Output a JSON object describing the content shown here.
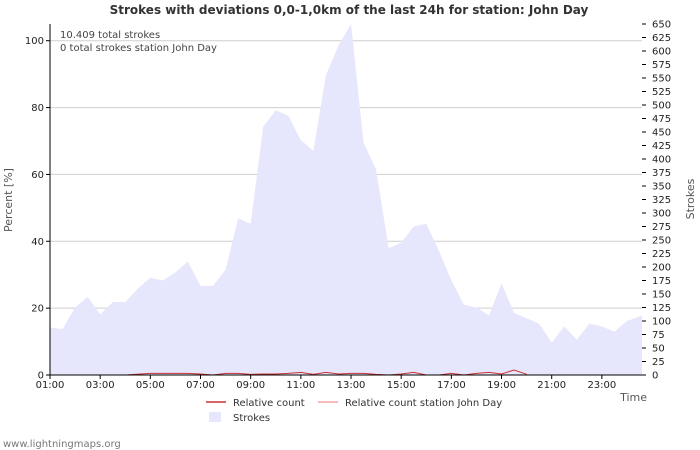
{
  "chart_data": {
    "type": "area",
    "title": "Strokes with deviations 0,0-1,0km of the last 24h for station: John Day",
    "xlabel": "Time",
    "ylabel_left": "Percent   [%]",
    "ylabel_right": "Strokes",
    "ylim_left": [
      0,
      105
    ],
    "ylim_right": [
      0,
      650
    ],
    "yticks_left": [
      0,
      20,
      40,
      60,
      80,
      100
    ],
    "yticks_right": [
      0,
      25,
      50,
      75,
      100,
      125,
      150,
      175,
      200,
      225,
      250,
      275,
      300,
      325,
      350,
      375,
      400,
      425,
      450,
      475,
      500,
      525,
      550,
      575,
      600,
      625,
      650
    ],
    "xlim": [
      1.0,
      24.6
    ],
    "xticks": [
      {
        "x": 1,
        "label": "01:00"
      },
      {
        "x": 3,
        "label": "03:00"
      },
      {
        "x": 5,
        "label": "05:00"
      },
      {
        "x": 7,
        "label": "07:00"
      },
      {
        "x": 9,
        "label": "09:00"
      },
      {
        "x": 11,
        "label": "11:00"
      },
      {
        "x": 13,
        "label": "13:00"
      },
      {
        "x": 15,
        "label": "15:00"
      },
      {
        "x": 17,
        "label": "17:00"
      },
      {
        "x": 19,
        "label": "19:00"
      },
      {
        "x": 21,
        "label": "21:00"
      },
      {
        "x": 23,
        "label": "23:00"
      }
    ],
    "annotations": [
      "10.409 total strokes",
      "0 total strokes station John Day"
    ],
    "series": [
      {
        "name": "Strokes",
        "axis": "right",
        "color": "#e6e6fc",
        "x": [
          1.0,
          1.5,
          2.0,
          2.5,
          3.0,
          3.5,
          4.0,
          4.5,
          5.0,
          5.5,
          6.0,
          6.5,
          7.0,
          7.5,
          8.0,
          8.5,
          9.0,
          9.5,
          10.0,
          10.5,
          11.0,
          11.5,
          12.0,
          12.5,
          13.0,
          13.5,
          14.0,
          14.5,
          15.0,
          15.5,
          16.0,
          16.5,
          17.0,
          17.5,
          18.0,
          18.5,
          19.0,
          19.5,
          20.0,
          20.5,
          21.0,
          21.5,
          22.0,
          22.5,
          23.0,
          23.5,
          24.0,
          24.6
        ],
        "values": [
          88,
          85,
          125,
          145,
          112,
          135,
          135,
          160,
          180,
          175,
          190,
          210,
          165,
          165,
          195,
          290,
          280,
          460,
          490,
          480,
          435,
          415,
          555,
          610,
          670,
          430,
          380,
          235,
          245,
          275,
          280,
          230,
          175,
          130,
          125,
          110,
          170,
          115,
          105,
          95,
          60,
          90,
          65,
          95,
          90,
          80,
          100,
          110
        ]
      },
      {
        "name": "Relative count",
        "axis": "left",
        "color": "#cc3333",
        "x": [
          4.0,
          5.0,
          5.5,
          6.0,
          6.5,
          7.0,
          7.5,
          8.0,
          8.5,
          9.0,
          9.5,
          10.0,
          10.5,
          11.0,
          11.5,
          12.0,
          12.5,
          13.0,
          13.5,
          14.0,
          14.5,
          15.0,
          15.5,
          16.0,
          16.5,
          17.0,
          17.5,
          18.0,
          18.5,
          19.0,
          19.5,
          20.0
        ],
        "values": [
          0,
          0.5,
          0.5,
          0.5,
          0.5,
          0.3,
          0,
          0.5,
          0.5,
          0.2,
          0.3,
          0.3,
          0.5,
          0.8,
          0.2,
          0.8,
          0.3,
          0.5,
          0.5,
          0.2,
          0,
          0.3,
          0.8,
          0,
          0,
          0.5,
          0,
          0.5,
          0.8,
          0.3,
          1.5,
          0.2
        ]
      },
      {
        "name": "Relative count station John Day",
        "axis": "left",
        "color": "#f4a6a6",
        "x": [],
        "values": []
      }
    ],
    "legend": [
      {
        "label": "Relative count",
        "type": "line",
        "color": "#cc3333"
      },
      {
        "label": "Relative count station John Day",
        "type": "line",
        "color": "#f4a6a6"
      },
      {
        "label": "Strokes",
        "type": "box",
        "color": "#e6e6fc"
      }
    ]
  },
  "footer": "www.lightningmaps.org"
}
